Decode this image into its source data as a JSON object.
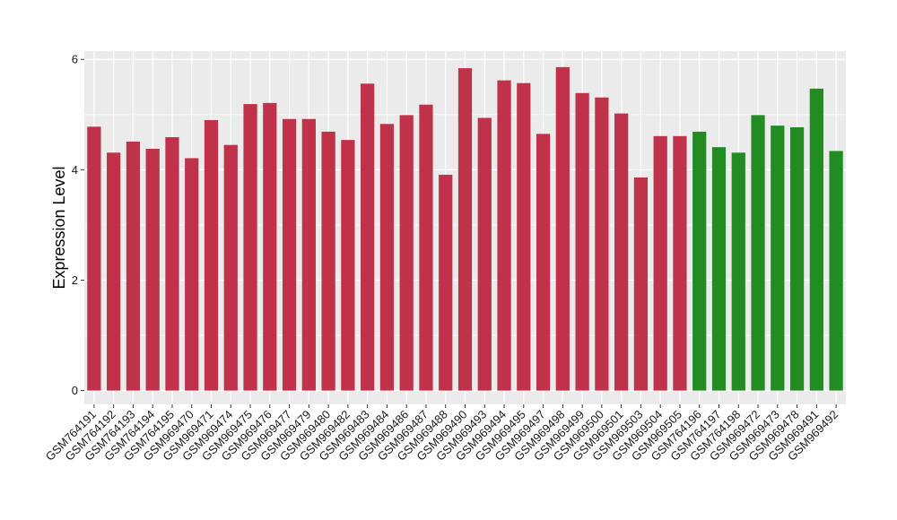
{
  "chart_data": {
    "type": "bar",
    "title": "",
    "xlabel": "",
    "ylabel": "Expression Level",
    "ylim": [
      -0.25,
      6.15
    ],
    "yticks": [
      0,
      2,
      4,
      6
    ],
    "grid": true,
    "legend": "none",
    "colors": {
      "group_a": "#c0314a",
      "group_b": "#228b22",
      "panel": "#ebebeb",
      "grid": "#ffffff"
    },
    "categories": [
      "GSM764191",
      "GSM764192",
      "GSM764193",
      "GSM764194",
      "GSM764195",
      "GSM969470",
      "GSM969471",
      "GSM969474",
      "GSM969475",
      "GSM969476",
      "GSM969477",
      "GSM969479",
      "GSM969480",
      "GSM969482",
      "GSM969483",
      "GSM969484",
      "GSM969486",
      "GSM969487",
      "GSM969488",
      "GSM969490",
      "GSM969493",
      "GSM969494",
      "GSM969495",
      "GSM969497",
      "GSM969498",
      "GSM969499",
      "GSM969500",
      "GSM969501",
      "GSM969503",
      "GSM969504",
      "GSM969505",
      "GSM764196",
      "GSM764197",
      "GSM764198",
      "GSM969472",
      "GSM969473",
      "GSM969478",
      "GSM969491",
      "GSM969492"
    ],
    "values": [
      4.78,
      4.31,
      4.51,
      4.38,
      4.59,
      4.21,
      4.9,
      4.45,
      5.19,
      5.21,
      4.92,
      4.92,
      4.69,
      4.54,
      5.56,
      4.83,
      4.99,
      5.18,
      3.91,
      5.84,
      4.94,
      5.62,
      5.57,
      4.65,
      5.86,
      5.39,
      5.31,
      5.02,
      3.86,
      4.61,
      4.61,
      4.69,
      4.41,
      4.31,
      4.99,
      4.8,
      4.77,
      5.47,
      4.34
    ],
    "groups": [
      "a",
      "a",
      "a",
      "a",
      "a",
      "a",
      "a",
      "a",
      "a",
      "a",
      "a",
      "a",
      "a",
      "a",
      "a",
      "a",
      "a",
      "a",
      "a",
      "a",
      "a",
      "a",
      "a",
      "a",
      "a",
      "a",
      "a",
      "a",
      "a",
      "a",
      "a",
      "b",
      "b",
      "b",
      "b",
      "b",
      "b",
      "b",
      "b"
    ]
  }
}
